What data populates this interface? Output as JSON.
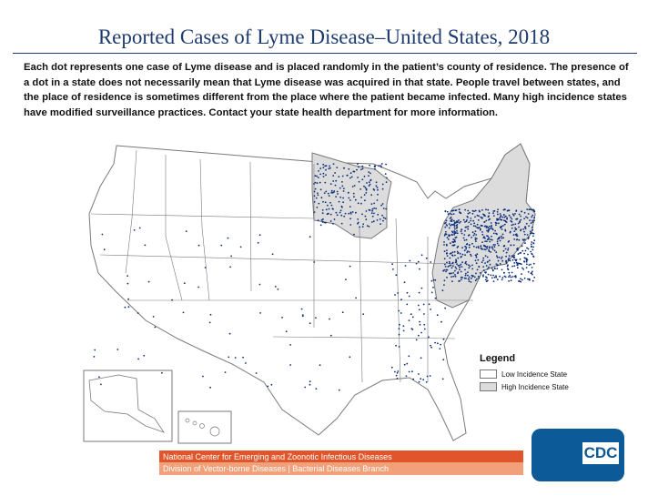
{
  "title": "Reported Cases of Lyme Disease–United States, 2018",
  "description": "Each dot represents one case of Lyme disease and is placed randomly in the patient’s county of residence. The presence of a dot in a state does not necessarily mean that Lyme disease was acquired in that state. People travel between states, and the place of residence is sometimes different from the place where the patient became infected. Many high incidence states have modified surveillance practices. Contact your state health department for more information.",
  "legend": {
    "title": "Legend",
    "items": [
      {
        "label": "Low Incidence State",
        "color": "#ffffff"
      },
      {
        "label": "High Incidence State",
        "color": "#dcdcdc"
      }
    ]
  },
  "footer": {
    "line1": "National Center for Emerging and Zoonotic Infectious Diseases",
    "line2": "Division of Vector-borne Diseases | Bacterial Diseases Branch"
  },
  "logo": {
    "text": "CDC",
    "bg_color": "#0d5a98"
  },
  "colors": {
    "dot": "#0b2d7a",
    "low_state": "#ffffff",
    "high_state": "#dcdcdc",
    "border": "#7a7a7a"
  },
  "high_incidence_states": [
    "ME",
    "NH",
    "VT",
    "MA",
    "RI",
    "CT",
    "NY",
    "NJ",
    "PA",
    "DE",
    "MD",
    "VA",
    "WV",
    "WI",
    "MN"
  ]
}
